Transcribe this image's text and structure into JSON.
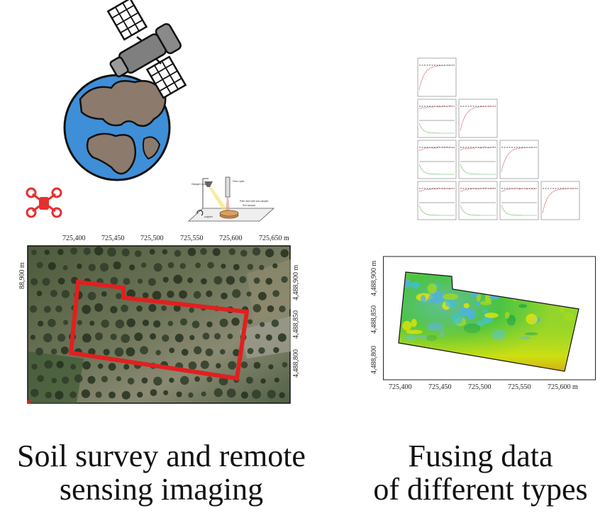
{
  "captions": {
    "left": [
      "Soil survey and remote",
      "sensing imaging"
    ],
    "right": [
      "Fusing data",
      "of different types"
    ]
  },
  "aerial_map": {
    "x_ticks": [
      "725,400",
      "725,450",
      "725,500",
      "725,550",
      "725,600",
      "725,650 m"
    ],
    "y_ticks_left": [
      "88,900 m"
    ],
    "y_ticks_right": [
      "4,488,900 m",
      "4,488,850",
      "4,488,800"
    ]
  },
  "fused_map": {
    "x_ticks": [
      "725,400",
      "725,450",
      "725,500",
      "725,550",
      "725,600 m"
    ],
    "y_ticks": [
      "4,488,900 m",
      "4,488,850",
      "4,488,800"
    ]
  },
  "spectro_labels": [
    "Halogen lamp",
    "Fiber optic",
    "Soil sample",
    "Petri dish with soil sample",
    "support"
  ],
  "colors": {
    "ocean": "#3e8fd8",
    "land": "#8c7a6c",
    "drone": "#e53030",
    "boundary": "#e02020",
    "fused_low": "#e07020",
    "fused_mid": "#f2e600",
    "fused_high": "#4fb0e8"
  },
  "icons": [
    "satellite-icon",
    "earth-icon",
    "drone-icon",
    "spectrometer-icon"
  ]
}
